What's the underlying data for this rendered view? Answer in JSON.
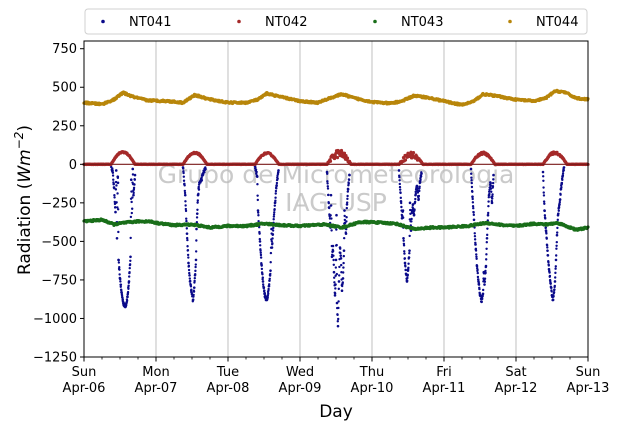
{
  "chart_data": {
    "type": "scatter",
    "xlabel": "Day",
    "ylabel_main": "Radiation (",
    "ylabel_unit": "Wm",
    "ylabel_exp": "−2",
    "ylabel_close": ")",
    "ylim": [
      -1250,
      800
    ],
    "yticks": [
      -1250,
      -1000,
      -750,
      -500,
      -250,
      0,
      250,
      500,
      750
    ],
    "ytick_labels": [
      "−1250",
      "−1000",
      "−750",
      "−500",
      "−250",
      "0",
      "250",
      "500",
      "750"
    ],
    "xlim": [
      "2025-04-06",
      "2025-04-13"
    ],
    "xticks": [
      {
        "day": "Sun",
        "date": "Apr-06"
      },
      {
        "day": "Mon",
        "date": "Apr-07"
      },
      {
        "day": "Tue",
        "date": "Apr-08"
      },
      {
        "day": "Wed",
        "date": "Apr-09"
      },
      {
        "day": "Thu",
        "date": "Apr-10"
      },
      {
        "day": "Fri",
        "date": "Apr-11"
      },
      {
        "day": "Sat",
        "date": "Apr-12"
      },
      {
        "day": "Sun",
        "date": "Apr-13"
      }
    ],
    "grid": "vertical",
    "legend_placement": "top, above plot",
    "watermark_line1": "Grupo de Micrometeorologia",
    "watermark_line2": "IAG-USP",
    "series": [
      {
        "name": "NT041",
        "color": "#0a0a8a",
        "points": [
          [
            "2025-04-06T09:00",
            0
          ],
          [
            "2025-04-06T09:30",
            -40
          ],
          [
            "2025-04-06T10:00",
            -150
          ],
          [
            "2025-04-06T10:30",
            -310
          ],
          [
            "2025-04-06T11:00",
            -480
          ],
          [
            "2025-04-06T11:30",
            -620
          ],
          [
            "2025-04-06T12:00",
            -740
          ],
          [
            "2025-04-06T12:30",
            -830
          ],
          [
            "2025-04-06T13:00",
            -890
          ],
          [
            "2025-04-06T13:30",
            -920
          ],
          [
            "2025-04-06T14:00",
            -910
          ],
          [
            "2025-04-06T14:30",
            -860
          ],
          [
            "2025-04-06T15:00",
            -760
          ],
          [
            "2025-04-06T15:30",
            -600
          ],
          [
            "2025-04-06T16:00",
            -380
          ],
          [
            "2025-04-06T16:30",
            -200
          ],
          [
            "2025-04-06T17:00",
            -70
          ],
          [
            "2025-04-06T10:45",
            -40
          ],
          [
            "2025-04-06T11:15",
            -80
          ],
          [
            "2025-04-06T11:20",
            -120
          ],
          [
            "2025-04-06T15:45",
            -100
          ],
          [
            "2025-04-06T16:15",
            -30
          ],
          [
            "2025-04-07T09:00",
            -20
          ],
          [
            "2025-04-07T09:45",
            -200
          ],
          [
            "2025-04-07T10:20",
            -450
          ],
          [
            "2025-04-07T10:50",
            -640
          ],
          [
            "2025-04-07T11:20",
            -760
          ],
          [
            "2025-04-07T11:50",
            -830
          ],
          [
            "2025-04-07T12:20",
            -880
          ],
          [
            "2025-04-07T12:45",
            -800
          ],
          [
            "2025-04-07T13:00",
            -720
          ],
          [
            "2025-04-07T13:20",
            -620
          ],
          [
            "2025-04-07T13:30",
            -420
          ],
          [
            "2025-04-07T13:45",
            -320
          ],
          [
            "2025-04-07T14:00",
            -200
          ],
          [
            "2025-04-07T14:30",
            -120
          ],
          [
            "2025-04-07T15:10",
            -100
          ],
          [
            "2025-04-07T15:40",
            -60
          ],
          [
            "2025-04-07T16:30",
            -30
          ],
          [
            "2025-04-08T09:00",
            -10
          ],
          [
            "2025-04-08T10:00",
            -300
          ],
          [
            "2025-04-08T10:40",
            -500
          ],
          [
            "2025-04-08T11:10",
            -650
          ],
          [
            "2025-04-08T11:40",
            -760
          ],
          [
            "2025-04-08T12:10",
            -840
          ],
          [
            "2025-04-08T12:40",
            -880
          ],
          [
            "2025-04-08T13:10",
            -860
          ],
          [
            "2025-04-08T13:40",
            -790
          ],
          [
            "2025-04-08T14:10",
            -690
          ],
          [
            "2025-04-08T14:40",
            -540
          ],
          [
            "2025-04-08T15:10",
            -380
          ],
          [
            "2025-04-08T15:40",
            -250
          ],
          [
            "2025-04-08T16:10",
            -140
          ],
          [
            "2025-04-08T16:50",
            -40
          ],
          [
            "2025-04-08T09:45",
            -80
          ],
          [
            "2025-04-08T14:30",
            -420
          ],
          [
            "2025-04-09T09:00",
            -50
          ],
          [
            "2025-04-09T09:40",
            -280
          ],
          [
            "2025-04-09T10:10",
            -410
          ],
          [
            "2025-04-09T10:40",
            -600
          ],
          [
            "2025-04-09T11:00",
            -530
          ],
          [
            "2025-04-09T11:20",
            -700
          ],
          [
            "2025-04-09T11:40",
            -850
          ],
          [
            "2025-04-09T11:50",
            -780
          ],
          [
            "2025-04-09T12:00",
            -620
          ],
          [
            "2025-04-09T12:20",
            -900
          ],
          [
            "2025-04-09T12:40",
            -1050
          ],
          [
            "2025-04-09T13:00",
            -760
          ],
          [
            "2025-04-09T13:20",
            -540
          ],
          [
            "2025-04-09T13:40",
            -610
          ],
          [
            "2025-04-09T14:00",
            -820
          ],
          [
            "2025-04-09T14:20",
            -740
          ],
          [
            "2025-04-09T14:40",
            -560
          ],
          [
            "2025-04-09T15:00",
            -380
          ],
          [
            "2025-04-09T15:20",
            -450
          ],
          [
            "2025-04-09T15:40",
            -260
          ],
          [
            "2025-04-09T16:00",
            -160
          ],
          [
            "2025-04-09T16:30",
            -70
          ],
          [
            "2025-04-09T10:20",
            -200
          ],
          [
            "2025-04-09T12:10",
            -330
          ],
          [
            "2025-04-09T14:50",
            -300
          ],
          [
            "2025-04-10T09:00",
            -40
          ],
          [
            "2025-04-10T09:40",
            -240
          ],
          [
            "2025-04-10T10:00",
            -350
          ],
          [
            "2025-04-10T10:30",
            -480
          ],
          [
            "2025-04-10T11:00",
            -640
          ],
          [
            "2025-04-10T11:20",
            -710
          ],
          [
            "2025-04-10T11:40",
            -760
          ],
          [
            "2025-04-10T12:00",
            -690
          ],
          [
            "2025-04-10T12:30",
            -560
          ],
          [
            "2025-04-10T13:00",
            -430
          ],
          [
            "2025-04-10T13:20",
            -300
          ],
          [
            "2025-04-10T13:40",
            -260
          ],
          [
            "2025-04-10T14:00",
            -330
          ],
          [
            "2025-04-10T14:30",
            -200
          ],
          [
            "2025-04-10T15:00",
            -140
          ],
          [
            "2025-04-10T15:30",
            -230
          ],
          [
            "2025-04-10T16:00",
            -110
          ],
          [
            "2025-04-10T16:30",
            -60
          ],
          [
            "2025-04-10T12:40",
            -250
          ],
          [
            "2025-04-10T10:20",
            -300
          ],
          [
            "2025-04-11T09:00",
            -30
          ],
          [
            "2025-04-11T09:30",
            -210
          ],
          [
            "2025-04-11T10:00",
            -360
          ],
          [
            "2025-04-11T10:30",
            -520
          ],
          [
            "2025-04-11T11:00",
            -660
          ],
          [
            "2025-04-11T11:30",
            -760
          ],
          [
            "2025-04-11T12:00",
            -850
          ],
          [
            "2025-04-11T12:30",
            -890
          ],
          [
            "2025-04-11T13:00",
            -840
          ],
          [
            "2025-04-11T13:30",
            -780
          ],
          [
            "2025-04-11T14:00",
            -660
          ],
          [
            "2025-04-11T14:20",
            -480
          ],
          [
            "2025-04-11T14:40",
            -330
          ],
          [
            "2025-04-11T15:00",
            -200
          ],
          [
            "2025-04-11T15:30",
            -120
          ],
          [
            "2025-04-11T16:00",
            -250
          ],
          [
            "2025-04-11T16:30",
            -70
          ],
          [
            "2025-04-11T13:15",
            -700
          ],
          [
            "2025-04-12T09:00",
            -50
          ],
          [
            "2025-04-12T09:30",
            -300
          ],
          [
            "2025-04-12T10:00",
            -430
          ],
          [
            "2025-04-12T10:30",
            -560
          ],
          [
            "2025-04-12T11:00",
            -680
          ],
          [
            "2025-04-12T11:30",
            -770
          ],
          [
            "2025-04-12T12:00",
            -850
          ],
          [
            "2025-04-12T12:20",
            -880
          ],
          [
            "2025-04-12T12:40",
            -830
          ],
          [
            "2025-04-12T13:00",
            -760
          ],
          [
            "2025-04-12T13:20",
            -620
          ],
          [
            "2025-04-12T13:40",
            -460
          ],
          [
            "2025-04-12T14:00",
            -330
          ],
          [
            "2025-04-12T14:20",
            -280
          ],
          [
            "2025-04-12T14:40",
            -230
          ],
          [
            "2025-04-12T15:00",
            -160
          ],
          [
            "2025-04-12T15:30",
            -80
          ],
          [
            "2025-04-12T16:00",
            -20
          ],
          [
            "2025-04-12T11:45",
            -800
          ]
        ]
      },
      {
        "name": "NT042",
        "color": "#a52a2a",
        "base": 0,
        "bumps": [
          {
            "start": "2025-04-06T09:00",
            "end": "2025-04-06T17:00",
            "peak": 80,
            "noise": 5
          },
          {
            "start": "2025-04-07T09:00",
            "end": "2025-04-07T17:00",
            "peak": 75,
            "noise": 6
          },
          {
            "start": "2025-04-08T09:00",
            "end": "2025-04-08T17:00",
            "peak": 72,
            "noise": 5
          },
          {
            "start": "2025-04-09T09:00",
            "end": "2025-04-09T17:00",
            "peak": 70,
            "noise": 28
          },
          {
            "start": "2025-04-10T09:00",
            "end": "2025-04-10T17:00",
            "peak": 60,
            "noise": 25
          },
          {
            "start": "2025-04-11T09:00",
            "end": "2025-04-11T17:00",
            "peak": 72,
            "noise": 8
          },
          {
            "start": "2025-04-12T09:00",
            "end": "2025-04-12T17:00",
            "peak": 75,
            "noise": 8
          }
        ]
      },
      {
        "name": "NT043",
        "color": "#1a6e1a",
        "profile": [
          [
            "2025-04-06T00:00",
            -370
          ],
          [
            "2025-04-06T06:00",
            -360
          ],
          [
            "2025-04-06T10:00",
            -390
          ],
          [
            "2025-04-06T13:00",
            -380
          ],
          [
            "2025-04-06T18:00",
            -370
          ],
          [
            "2025-04-06T22:00",
            -370
          ],
          [
            "2025-04-07T00:00",
            -380
          ],
          [
            "2025-04-07T06:00",
            -395
          ],
          [
            "2025-04-07T12:00",
            -390
          ],
          [
            "2025-04-07T18:00",
            -410
          ],
          [
            "2025-04-08T00:00",
            -400
          ],
          [
            "2025-04-08T06:00",
            -400
          ],
          [
            "2025-04-08T12:00",
            -385
          ],
          [
            "2025-04-08T18:00",
            -395
          ],
          [
            "2025-04-09T00:00",
            -400
          ],
          [
            "2025-04-09T08:00",
            -390
          ],
          [
            "2025-04-09T14:00",
            -410
          ],
          [
            "2025-04-09T20:00",
            -375
          ],
          [
            "2025-04-10T00:00",
            -375
          ],
          [
            "2025-04-10T08:00",
            -385
          ],
          [
            "2025-04-10T14:00",
            -420
          ],
          [
            "2025-04-10T20:00",
            -410
          ],
          [
            "2025-04-11T00:00",
            -410
          ],
          [
            "2025-04-11T08:00",
            -400
          ],
          [
            "2025-04-11T14:00",
            -380
          ],
          [
            "2025-04-11T20:00",
            -395
          ],
          [
            "2025-04-12T00:00",
            -400
          ],
          [
            "2025-04-12T06:00",
            -385
          ],
          [
            "2025-04-12T10:00",
            -390
          ],
          [
            "2025-04-12T14:00",
            -380
          ],
          [
            "2025-04-12T20:00",
            -425
          ],
          [
            "2025-04-13T00:00",
            -410
          ]
        ]
      },
      {
        "name": "NT044",
        "color": "#b8860b",
        "profile": [
          [
            "2025-04-06T00:00",
            400
          ],
          [
            "2025-04-06T06:00",
            390
          ],
          [
            "2025-04-06T10:00",
            420
          ],
          [
            "2025-04-06T13:00",
            465
          ],
          [
            "2025-04-06T16:00",
            440
          ],
          [
            "2025-04-06T21:00",
            415
          ],
          [
            "2025-04-07T04:00",
            410
          ],
          [
            "2025-04-07T09:00",
            400
          ],
          [
            "2025-04-07T13:00",
            450
          ],
          [
            "2025-04-07T17:00",
            425
          ],
          [
            "2025-04-08T00:00",
            400
          ],
          [
            "2025-04-08T06:00",
            400
          ],
          [
            "2025-04-08T10:00",
            420
          ],
          [
            "2025-04-08T13:00",
            460
          ],
          [
            "2025-04-08T17:00",
            440
          ],
          [
            "2025-04-09T00:00",
            410
          ],
          [
            "2025-04-09T06:00",
            400
          ],
          [
            "2025-04-09T10:00",
            430
          ],
          [
            "2025-04-09T14:00",
            455
          ],
          [
            "2025-04-09T18:00",
            430
          ],
          [
            "2025-04-10T00:00",
            405
          ],
          [
            "2025-04-10T06:00",
            395
          ],
          [
            "2025-04-10T10:00",
            410
          ],
          [
            "2025-04-10T14:00",
            445
          ],
          [
            "2025-04-10T18:00",
            435
          ],
          [
            "2025-04-11T00:00",
            410
          ],
          [
            "2025-04-11T06:00",
            385
          ],
          [
            "2025-04-11T10:00",
            410
          ],
          [
            "2025-04-11T13:00",
            455
          ],
          [
            "2025-04-11T17:00",
            445
          ],
          [
            "2025-04-12T00:00",
            420
          ],
          [
            "2025-04-12T06:00",
            410
          ],
          [
            "2025-04-12T10:00",
            430
          ],
          [
            "2025-04-12T13:00",
            475
          ],
          [
            "2025-04-12T16:00",
            470
          ],
          [
            "2025-04-12T20:00",
            430
          ],
          [
            "2025-04-13T00:00",
            420
          ]
        ]
      }
    ]
  }
}
